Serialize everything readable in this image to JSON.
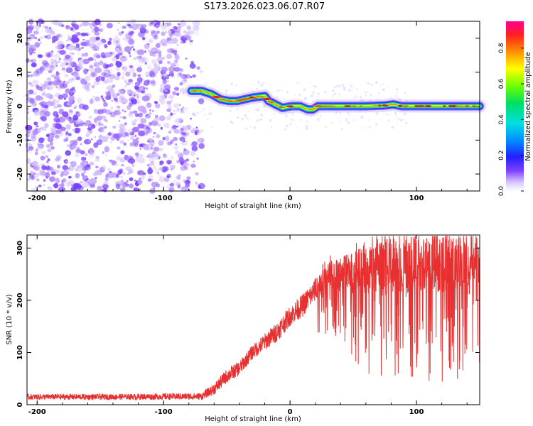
{
  "title": "S173.2026.023.06.07.R07",
  "chart_data": [
    {
      "type": "heatmap",
      "name": "spectrogram",
      "xlabel": "Height of straight line (km)",
      "ylabel": "Frequency (Hz)",
      "xlim": [
        -208,
        150
      ],
      "ylim": [
        -25,
        25
      ],
      "xticks": [
        "-200",
        "-100",
        "0",
        "100"
      ],
      "xtick_values": [
        -200,
        -100,
        0,
        100
      ],
      "yticks": [
        "20",
        "10",
        "0",
        "-10",
        "-20"
      ],
      "ytick_values": [
        20,
        10,
        0,
        -10,
        -20
      ],
      "colorbar": {
        "label": "Normalized spectral amplitude",
        "range": [
          0.0,
          0.95
        ],
        "ticks": [
          "0.0",
          "0.2",
          "0.4",
          "0.6",
          "0.8"
        ],
        "tick_values": [
          0.0,
          0.2,
          0.4,
          0.6,
          0.8
        ]
      },
      "noise_region": {
        "x_from": -208,
        "x_to": -75,
        "y_from": -25,
        "y_to": 25,
        "amplitude": [
          0.03,
          0.12
        ]
      },
      "signal_track": {
        "x": [
          -78,
          -70,
          -62,
          -55,
          -48,
          -42,
          -36,
          -30,
          -24,
          -20,
          -17,
          -14,
          -10,
          -6,
          -2,
          2,
          8,
          14,
          18,
          22,
          26,
          40,
          60,
          75,
          82,
          88,
          100,
          120,
          150
        ],
        "frequency": [
          4.5,
          4.5,
          3.5,
          2.0,
          1.5,
          1.5,
          2.0,
          2.5,
          2.8,
          3.0,
          1.5,
          1.0,
          0.2,
          -0.5,
          -0.2,
          0.0,
          0.0,
          -1.0,
          -1.0,
          0.0,
          0.0,
          0.0,
          0.0,
          0.2,
          0.5,
          0.0,
          0.0,
          0.0,
          0.0
        ],
        "peak_amplitude": 0.95
      }
    },
    {
      "type": "line",
      "name": "snr",
      "xlabel": "Height of straight line (km)",
      "ylabel": "SNR (10 * v/v)",
      "xlim": [
        -208,
        150
      ],
      "ylim": [
        0,
        325
      ],
      "xticks": [
        "-200",
        "-100",
        "0",
        "100"
      ],
      "xtick_values": [
        -200,
        -100,
        0,
        100
      ],
      "yticks": [
        "300",
        "200",
        "100",
        "0"
      ],
      "ytick_values": [
        300,
        200,
        100,
        0
      ],
      "color": "#e83030",
      "envelope": {
        "x": [
          -208,
          -140,
          -70,
          -60,
          -50,
          -40,
          -30,
          -20,
          -10,
          0,
          10,
          20,
          30,
          40,
          60,
          80,
          100,
          120,
          150
        ],
        "mean": [
          15,
          15,
          16,
          30,
          55,
          70,
          100,
          120,
          140,
          170,
          190,
          220,
          245,
          250,
          255,
          265,
          270,
          275,
          280
        ],
        "spread": [
          10,
          10,
          12,
          20,
          25,
          25,
          25,
          30,
          35,
          35,
          40,
          40,
          50,
          60,
          90,
          100,
          100,
          110,
          100
        ]
      }
    }
  ]
}
